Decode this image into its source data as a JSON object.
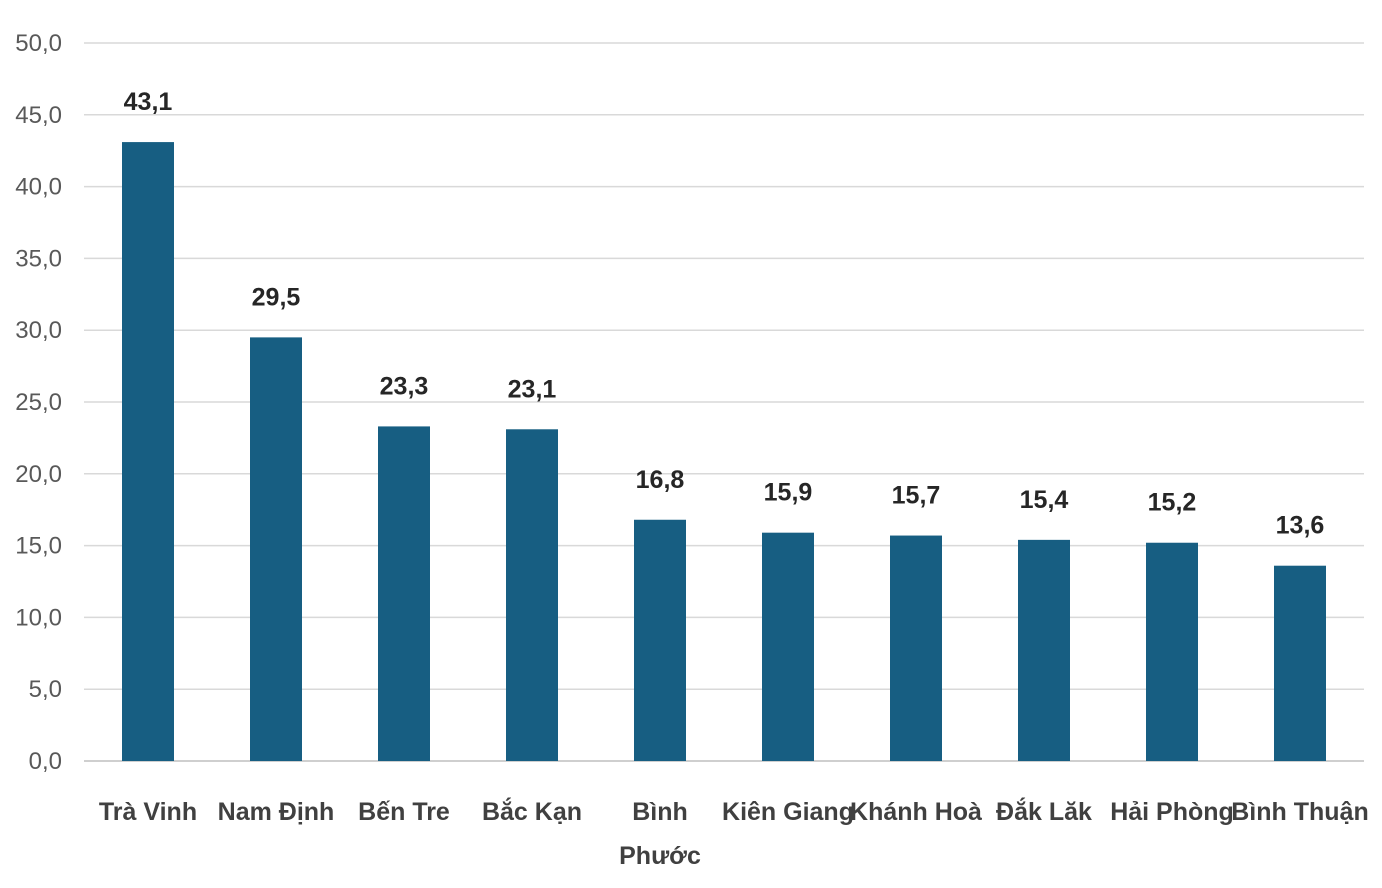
{
  "chart_data": {
    "type": "bar",
    "title": "",
    "xlabel": "",
    "ylabel": "",
    "categories": [
      "Trà Vinh",
      "Nam Định",
      "Bến Tre",
      "Bắc Kạn",
      "Bình Phước",
      "Kiên Giang",
      "Khánh Hoà",
      "Đắk Lăk",
      "Hải Phòng",
      "Bình Thuận"
    ],
    "values": [
      43.1,
      29.5,
      23.3,
      23.1,
      16.8,
      15.9,
      15.7,
      15.4,
      15.2,
      13.6
    ],
    "value_labels": [
      "43,1",
      "29,5",
      "23,3",
      "23,1",
      "16,8",
      "15,9",
      "15,7",
      "15,4",
      "15,2",
      "13,6"
    ],
    "ylim": [
      0,
      50
    ],
    "y_ticks": [
      0,
      5,
      10,
      15,
      20,
      25,
      30,
      35,
      40,
      45,
      50
    ],
    "y_tick_labels": [
      "0,0",
      "5,0",
      "10,0",
      "15,0",
      "20,0",
      "25,0",
      "30,0",
      "35,0",
      "40,0",
      "45,0",
      "50,0"
    ],
    "grid": true,
    "legend": "none",
    "bar_color": "#175e82"
  }
}
